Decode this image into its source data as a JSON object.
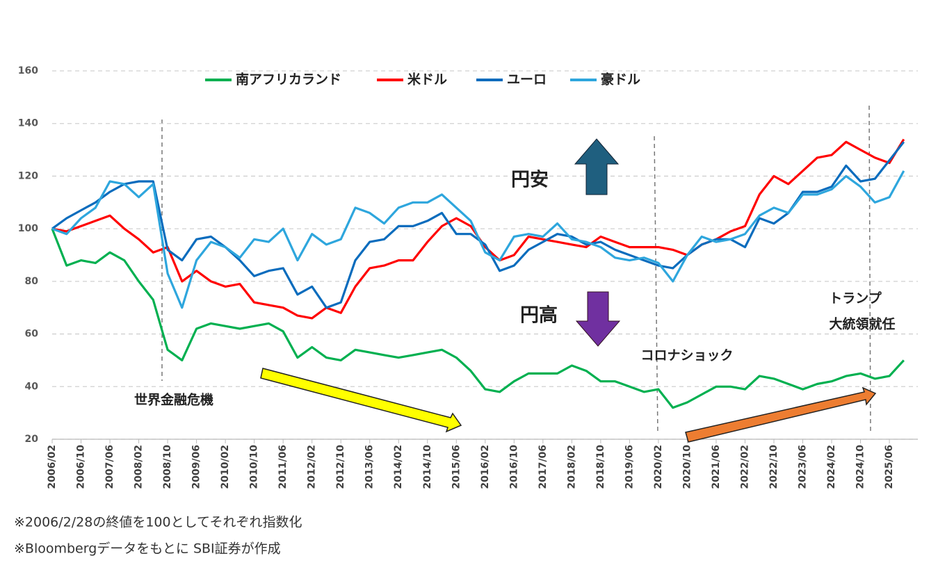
{
  "chart_data": {
    "type": "line",
    "categories": [
      "2006/02",
      null,
      "2006/10",
      null,
      "2007/06",
      null,
      "2008/02",
      null,
      "2008/10",
      null,
      "2009/06",
      null,
      "2010/02",
      null,
      "2010/10",
      null,
      "2011/06",
      null,
      "2012/02",
      null,
      "2012/10",
      null,
      "2013/06",
      null,
      "2014/02",
      null,
      "2014/10",
      null,
      "2015/06",
      null,
      "2016/02",
      null,
      "2016/10",
      null,
      "2017/06",
      null,
      "2018/02",
      null,
      "2018/10",
      null,
      "2019/06",
      null,
      "2020/02",
      null,
      "2020/10",
      null,
      "2021/06",
      null,
      "2022/02",
      null,
      "2022/10",
      null,
      "2023/06",
      null,
      "2024/02",
      null,
      "2024/10",
      null,
      "2025/06",
      null
    ],
    "series": [
      {
        "name": "南アフリカランド",
        "color": "#00b050",
        "values": [
          100,
          86,
          88,
          87,
          91,
          88,
          80,
          73,
          54,
          50,
          62,
          64,
          63,
          62,
          63,
          64,
          61,
          51,
          55,
          51,
          50,
          54,
          53,
          52,
          51,
          52,
          53,
          54,
          51,
          46,
          39,
          38,
          42,
          45,
          45,
          45,
          48,
          46,
          42,
          42,
          40,
          38,
          39,
          32,
          34,
          37,
          40,
          40,
          39,
          44,
          43,
          41,
          39,
          41,
          42,
          44,
          45,
          43,
          44,
          50
        ]
      },
      {
        "name": "米ドル",
        "color": "#ff0000",
        "values": [
          100,
          99,
          101,
          103,
          105,
          100,
          96,
          91,
          93,
          80,
          84,
          80,
          78,
          79,
          72,
          71,
          70,
          67,
          66,
          70,
          68,
          78,
          85,
          86,
          88,
          88,
          95,
          101,
          104,
          101,
          93,
          88,
          90,
          97,
          96,
          95,
          94,
          93,
          97,
          95,
          93,
          93,
          93,
          92,
          90,
          94,
          96,
          99,
          101,
          113,
          120,
          117,
          122,
          127,
          128,
          133,
          130,
          127,
          125,
          134
        ]
      },
      {
        "name": "ユーロ",
        "color": "#0a6cbd",
        "values": [
          100,
          104,
          107,
          110,
          114,
          117,
          118,
          118,
          92,
          88,
          96,
          97,
          93,
          88,
          82,
          84,
          85,
          75,
          78,
          70,
          72,
          88,
          95,
          96,
          101,
          101,
          103,
          106,
          98,
          98,
          94,
          84,
          86,
          92,
          95,
          98,
          97,
          94,
          95,
          92,
          90,
          88,
          86,
          85,
          90,
          94,
          96,
          96,
          93,
          104,
          102,
          106,
          114,
          114,
          116,
          124,
          118,
          119,
          126,
          133
        ]
      },
      {
        "name": "豪ドル",
        "color": "#2ea6dd",
        "values": [
          100,
          98,
          104,
          108,
          118,
          117,
          112,
          117,
          83,
          70,
          88,
          95,
          93,
          89,
          96,
          95,
          100,
          88,
          98,
          94,
          96,
          108,
          106,
          102,
          108,
          110,
          110,
          113,
          108,
          103,
          91,
          88,
          97,
          98,
          97,
          102,
          96,
          95,
          93,
          89,
          88,
          89,
          87,
          80,
          90,
          97,
          95,
          96,
          98,
          105,
          108,
          106,
          113,
          113,
          115,
          120,
          116,
          110,
          112,
          122
        ]
      }
    ],
    "ylim": [
      20,
      160
    ],
    "yticks": [
      20,
      40,
      60,
      80,
      100,
      120,
      140,
      160
    ],
    "grid": true,
    "legend": "top",
    "annotations": [
      "円安",
      "円高",
      "世界金融危機",
      "コロナショック",
      "トランプ",
      "大統領就任"
    ],
    "notes": [
      "※2006/2/28の終値を100としてそれぞれ指数化",
      "※Bloombergデータをもとに SBI証券が作成"
    ]
  }
}
